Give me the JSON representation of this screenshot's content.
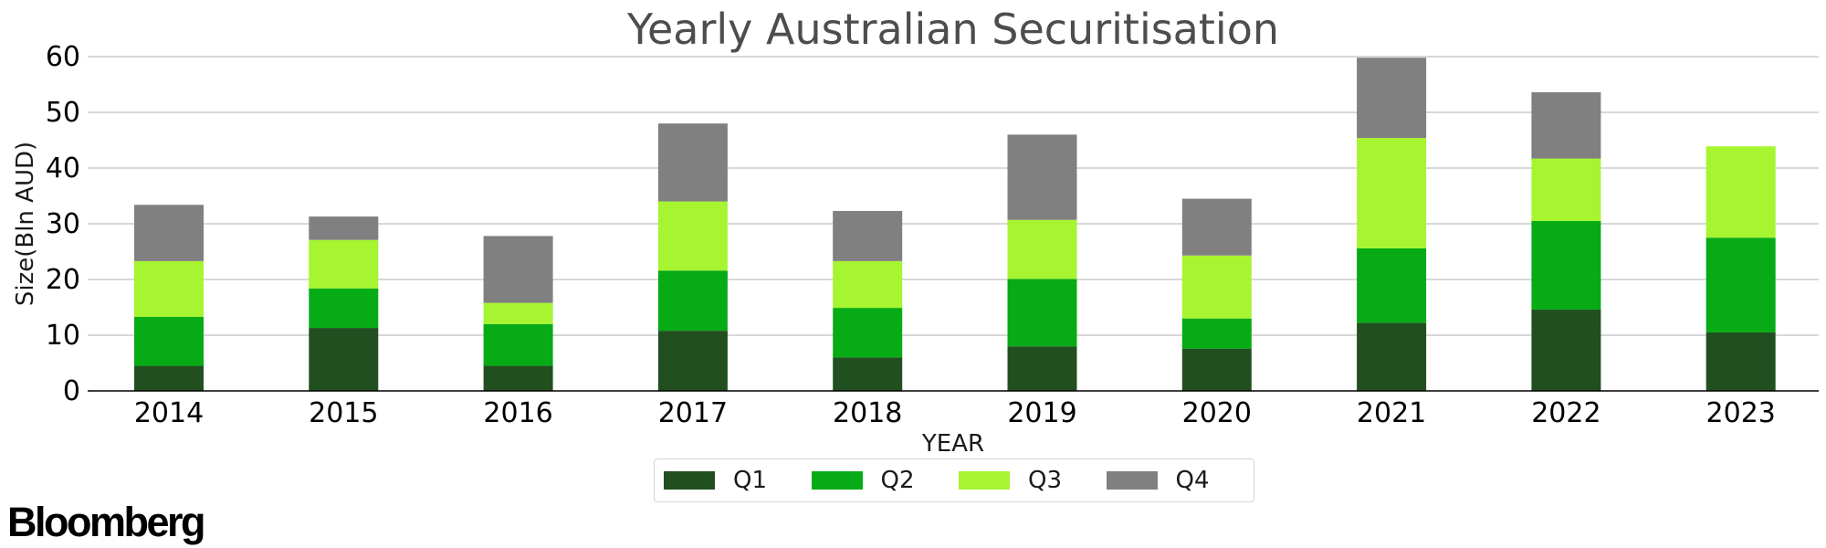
{
  "brand": {
    "logo_text": "Bloomberg"
  },
  "chart_data": {
    "type": "bar",
    "stacked": true,
    "title": "Yearly Australian Securitisation",
    "xlabel": "YEAR",
    "ylabel": "Size(Bln AUD)",
    "ylim": [
      0,
      60
    ],
    "yticks": [
      0,
      10,
      20,
      30,
      40,
      50,
      60
    ],
    "grid": "horizontal",
    "legend_position": "bottom-center",
    "categories": [
      "2014",
      "2015",
      "2016",
      "2017",
      "2018",
      "2019",
      "2020",
      "2021",
      "2022",
      "2023"
    ],
    "series": [
      {
        "name": "Q1",
        "color": "#224f20",
        "values": [
          4.5,
          11.3,
          4.5,
          10.8,
          6.0,
          8.0,
          7.6,
          12.2,
          14.6,
          10.5
        ]
      },
      {
        "name": "Q2",
        "color": "#06ab16",
        "values": [
          8.8,
          7.1,
          7.5,
          10.8,
          8.9,
          12.1,
          5.4,
          13.4,
          15.9,
          17.0
        ]
      },
      {
        "name": "Q3",
        "color": "#a6f530",
        "values": [
          10.0,
          8.7,
          3.8,
          12.4,
          8.4,
          10.6,
          11.3,
          19.8,
          11.2,
          16.4
        ]
      },
      {
        "name": "Q4",
        "color": "#808080",
        "values": [
          10.1,
          4.2,
          12.0,
          14.0,
          9.0,
          15.3,
          10.2,
          14.4,
          11.9,
          0
        ]
      }
    ]
  }
}
